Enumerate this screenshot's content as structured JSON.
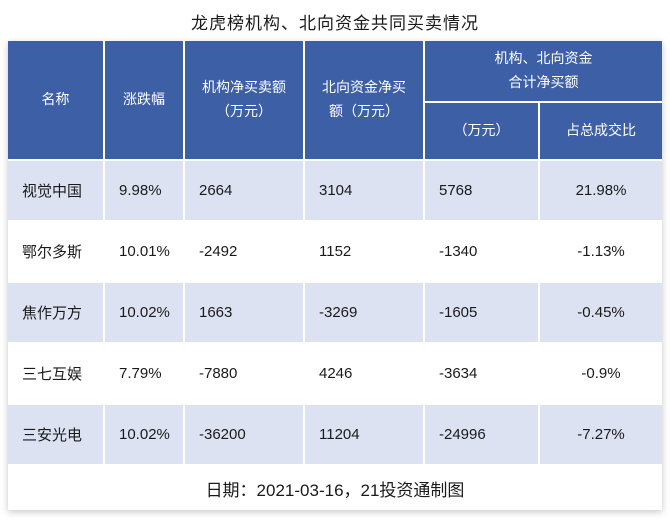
{
  "title": "龙虎榜机构、北向资金共同买卖情况",
  "colors": {
    "header_bg": "#3d5fa6",
    "row_alt_bg": "#dce2f1",
    "text": "#1a1a1a"
  },
  "table": {
    "header": {
      "name": "名称",
      "change": "涨跌幅",
      "inst": "机构净买卖额\n（万元）",
      "north": "北向资金净买\n额（万元）",
      "group": "机构、北向资金\n合计净买额",
      "sub_amount": "（万元）",
      "sub_ratio": "占总成交比"
    },
    "rows": [
      {
        "name": "视觉中国",
        "change": "9.98%",
        "inst": "2664",
        "north": "3104",
        "total": "5768",
        "ratio": "21.98%"
      },
      {
        "name": "鄂尔多斯",
        "change": "10.01%",
        "inst": "-2492",
        "north": "1152",
        "total": "-1340",
        "ratio": "-1.13%"
      },
      {
        "name": "焦作万方",
        "change": "10.02%",
        "inst": "1663",
        "north": "-3269",
        "total": "-1605",
        "ratio": "-0.45%"
      },
      {
        "name": "三七互娱",
        "change": "7.79%",
        "inst": "-7880",
        "north": "4246",
        "total": "-3634",
        "ratio": "-0.9%"
      },
      {
        "name": "三安光电",
        "change": "10.02%",
        "inst": "-36200",
        "north": "11204",
        "total": "-24996",
        "ratio": "-7.27%"
      }
    ],
    "footnote": "日期：2021-03-16，21投资通制图"
  },
  "chart_data": {
    "type": "table",
    "title": "龙虎榜机构、北向资金共同买卖情况",
    "columns": [
      "名称",
      "涨跌幅",
      "机构净买卖额（万元）",
      "北向资金净买额（万元）",
      "机构、北向资金合计净买额（万元）",
      "机构、北向资金合计净买额占总成交比"
    ],
    "rows": [
      [
        "视觉中国",
        9.98,
        2664,
        3104,
        5768,
        21.98
      ],
      [
        "鄂尔多斯",
        10.01,
        -2492,
        1152,
        -1340,
        -1.13
      ],
      [
        "焦作万方",
        10.02,
        1663,
        -3269,
        -1605,
        -0.45
      ],
      [
        "三七互娱",
        7.79,
        -7880,
        4246,
        -3634,
        -0.9
      ],
      [
        "三安光电",
        10.02,
        -36200,
        11204,
        -24996,
        -7.27
      ]
    ],
    "note": "日期：2021-03-16，21投资通制图"
  }
}
